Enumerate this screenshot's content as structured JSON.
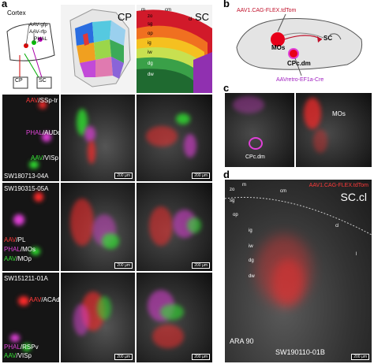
{
  "panels": {
    "a": "a",
    "b": "b",
    "c": "c",
    "d": "d"
  },
  "schematic_a": {
    "cortex_label": "Cortex",
    "inj1": "AAV-gfp",
    "inj2": "AAV-rfp",
    "inj3": "PHAL",
    "target1": "CP",
    "target2": "SC"
  },
  "atlas_cp": {
    "title": "CP"
  },
  "atlas_sc": {
    "title": "SC",
    "layers": [
      "m",
      "zo",
      "sg",
      "op",
      "ig",
      "iw",
      "dg",
      "dw"
    ],
    "edge_labels": [
      "cm",
      "cl"
    ]
  },
  "rows": [
    {
      "labels": [
        {
          "tracer": "AAV",
          "area": "/SSp-tr",
          "color": "red"
        },
        {
          "tracer": "PHAL",
          "area": "/AUDd",
          "color": "magenta"
        },
        {
          "tracer": "AAV",
          "area": "/VISp",
          "color": "green"
        }
      ],
      "case_id": "SW180713-04A",
      "scale": "200 µm"
    },
    {
      "labels": [
        {
          "tracer": "AAV",
          "area": "/PL",
          "color": "red"
        },
        {
          "tracer": "PHAL",
          "area": "/MOs",
          "color": "magenta"
        },
        {
          "tracer": "AAV",
          "area": "/MOp",
          "color": "green"
        }
      ],
      "case_id": "SW190315-05A",
      "scale": "200 µm"
    },
    {
      "labels": [
        {
          "tracer": "AAV",
          "area": "/ACAd",
          "color": "red"
        },
        {
          "tracer": "PHAL",
          "area": "/RSPv",
          "color": "magenta"
        },
        {
          "tracer": "AAV",
          "area": "/VISp",
          "color": "green"
        }
      ],
      "case_id": "SW151211-01A",
      "scale": "200 µm"
    }
  ],
  "panel_b": {
    "construct_top": "AAV1.CAG-FLEX.tdTom",
    "mos": "MOs",
    "sc": "SC",
    "cpc": "CPc.dm",
    "construct_bottom": "AAVretro-EF1a-Cre"
  },
  "panel_c": {
    "mos": "MOs",
    "cpc": "CPc.dm"
  },
  "panel_d": {
    "construct": "AAV1.CAG-FLEX.tdTom",
    "region": "SC.cl",
    "layers": [
      "zo",
      "sg",
      "op",
      "ig",
      "iw",
      "dg",
      "dw"
    ],
    "edge_labels": [
      "m",
      "cm",
      "cl",
      "l"
    ],
    "ara": "ARA 90",
    "case_id": "SW190110-01B",
    "scale": "200 µm"
  },
  "colors": {
    "red": "#ff2a2a",
    "magenta": "#e040d8",
    "green": "#30e030",
    "arrow": "#c0102a"
  }
}
